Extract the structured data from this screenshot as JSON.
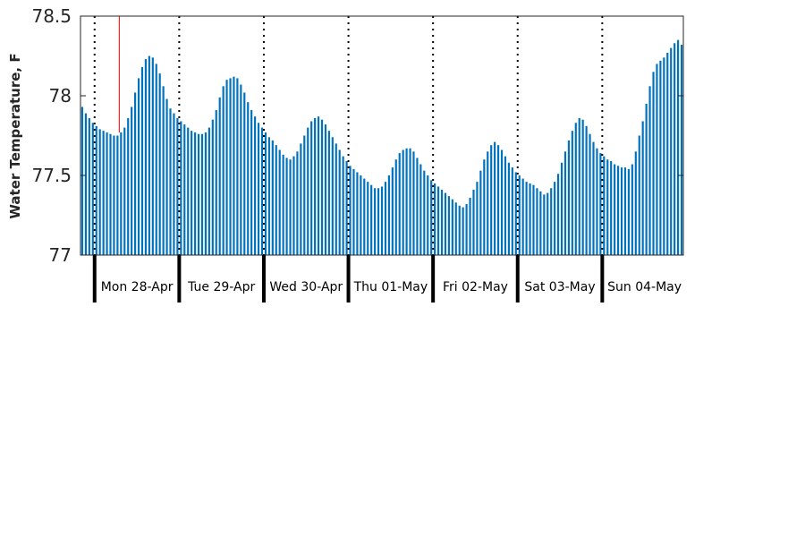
{
  "chart_data": {
    "type": "bar",
    "title": "",
    "xlabel": "",
    "ylabel": "Water Temperature, F",
    "ylim": [
      77,
      78.5
    ],
    "yticks": [
      "77",
      "77.5",
      "78",
      "78.5"
    ],
    "grid": false,
    "legend": "none",
    "colors": {
      "bar": "#0072BD",
      "marker_line": "#FF0000",
      "day_divider": "#000000",
      "axis": "#262626"
    },
    "x_start": "Sun 27-Apr 20:30",
    "interval_minutes": 60,
    "marker_time": "Mon 28-Apr 07:30",
    "day_labels": [
      "Mon 28-Apr",
      "Tue 29-Apr",
      "Wed 30-Apr",
      "Thu 01-May",
      "Fri 02-May",
      "Sat 03-May",
      "Sun 04-May"
    ],
    "series": [
      {
        "values": [
          77.93,
          77.89,
          77.86,
          77.83,
          77.81,
          77.79,
          77.78,
          77.77,
          77.76,
          77.75,
          77.75,
          77.77,
          77.8,
          77.86,
          77.93,
          78.02,
          78.11,
          78.18,
          78.23,
          78.25,
          78.24,
          78.2,
          78.14,
          78.06,
          77.98,
          77.92,
          77.89,
          77.86,
          77.84,
          77.82,
          77.8,
          77.78,
          77.77,
          77.76,
          77.76,
          77.77,
          77.8,
          77.85,
          77.91,
          77.99,
          78.06,
          78.1,
          78.11,
          78.12,
          78.11,
          78.07,
          78.02,
          77.96,
          77.91,
          77.87,
          77.83,
          77.8,
          77.77,
          77.74,
          77.72,
          77.69,
          77.66,
          77.63,
          77.61,
          77.6,
          77.62,
          77.65,
          77.7,
          77.75,
          77.8,
          77.84,
          77.86,
          77.87,
          77.85,
          77.82,
          77.78,
          77.74,
          77.7,
          77.66,
          77.62,
          77.59,
          77.56,
          77.54,
          77.52,
          77.5,
          77.48,
          77.46,
          77.44,
          77.42,
          77.42,
          77.43,
          77.46,
          77.5,
          77.55,
          77.6,
          77.64,
          77.66,
          77.67,
          77.67,
          77.65,
          77.61,
          77.57,
          77.53,
          77.5,
          77.47,
          77.45,
          77.43,
          77.41,
          77.39,
          77.37,
          77.35,
          77.33,
          77.31,
          77.3,
          77.32,
          77.36,
          77.41,
          77.46,
          77.53,
          77.6,
          77.65,
          77.69,
          77.71,
          77.69,
          77.66,
          77.62,
          77.58,
          77.55,
          77.52,
          77.5,
          77.48,
          77.46,
          77.45,
          77.44,
          77.42,
          77.4,
          77.38,
          77.39,
          77.42,
          77.46,
          77.51,
          77.58,
          77.65,
          77.72,
          77.78,
          77.83,
          77.86,
          77.85,
          77.81,
          77.76,
          77.71,
          77.67,
          77.64,
          77.62,
          77.6,
          77.59,
          77.57,
          77.56,
          77.55,
          77.55,
          77.54,
          77.57,
          77.65,
          77.75,
          77.84,
          77.95,
          78.06,
          78.15,
          78.2,
          78.22,
          78.24,
          78.27,
          78.3,
          78.33,
          78.35,
          78.32
        ]
      }
    ]
  }
}
